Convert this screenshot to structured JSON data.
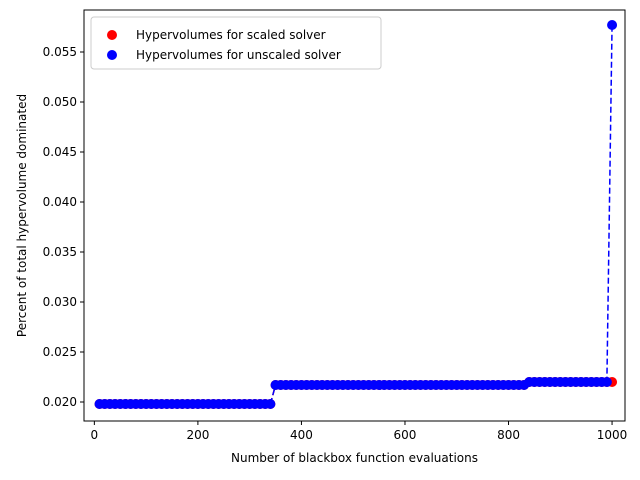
{
  "chart_data": {
    "type": "scatter",
    "title": "",
    "xlabel": "Number of blackbox function evaluations",
    "ylabel": "Percent of total hypervolume dominated",
    "xlim": [
      -20,
      1025
    ],
    "ylim": [
      0.0181,
      0.0592
    ],
    "xticks": [
      0,
      200,
      400,
      600,
      800,
      1000
    ],
    "yticks": [
      0.02,
      0.025,
      0.03,
      0.035,
      0.04,
      0.045,
      0.05,
      0.055
    ],
    "xtick_labels": [
      "0",
      "200",
      "400",
      "600",
      "800",
      "1000"
    ],
    "ytick_labels": [
      "0.020",
      "0.025",
      "0.030",
      "0.035",
      "0.040",
      "0.045",
      "0.050",
      "0.055"
    ],
    "grid": false,
    "legend": {
      "placement": "top-left"
    },
    "series": [
      {
        "name": "Hypervolumes for scaled solver",
        "color": "#ff0000",
        "style": "dashed-line-with-markers",
        "segments": [
          {
            "x_start": 10,
            "x_end": 340,
            "step": 10,
            "y": 0.0198
          },
          {
            "x_start": 350,
            "x_end": 830,
            "step": 10,
            "y": 0.0217
          },
          {
            "x_start": 840,
            "x_end": 1000,
            "step": 10,
            "y": 0.022
          }
        ]
      },
      {
        "name": "Hypervolumes for unscaled solver",
        "color": "#0000ff",
        "style": "dashed-line-with-markers",
        "segments": [
          {
            "x_start": 10,
            "x_end": 340,
            "step": 10,
            "y": 0.0198
          },
          {
            "x_start": 350,
            "x_end": 830,
            "step": 10,
            "y": 0.0217
          },
          {
            "x_start": 840,
            "x_end": 990,
            "step": 10,
            "y": 0.022
          },
          {
            "x_start": 1000,
            "x_end": 1000,
            "step": 10,
            "y": 0.0577
          }
        ]
      }
    ]
  }
}
